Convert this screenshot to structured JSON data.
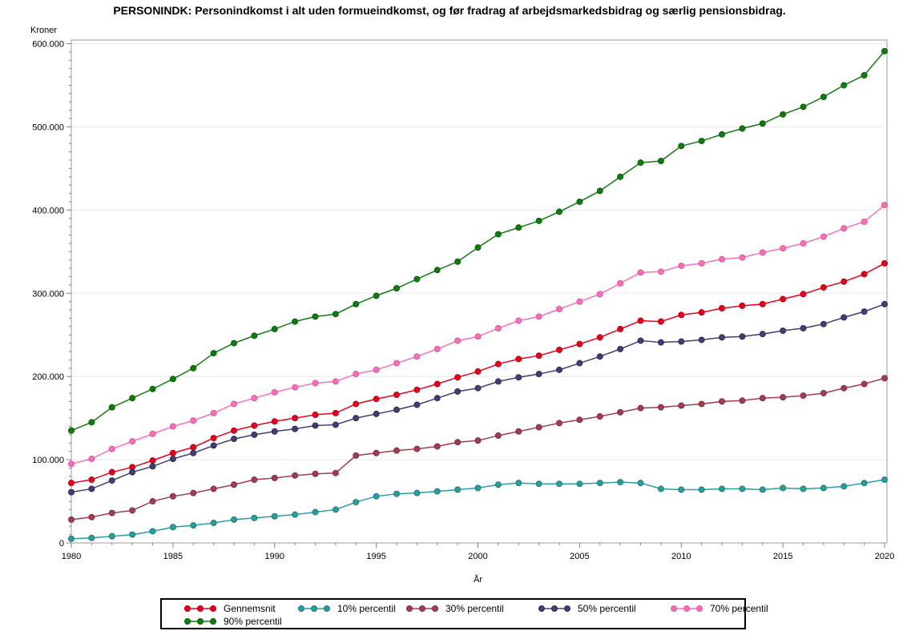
{
  "title": "PERSONINDK: Personindkomst i alt uden formueindkomst, og før fradrag af arbejdsmarkedsbidrag og særlig pensionsbidrag.",
  "chart_data": {
    "type": "line",
    "title": "PERSONINDK: Personindkomst i alt uden formueindkomst, og før fradrag af arbejdsmarkedsbidrag og særlig pensionsbidrag.",
    "xlabel": "År",
    "ylabel": "Kroner",
    "xlim": [
      1980,
      2020
    ],
    "ylim": [
      0,
      600000
    ],
    "grid": "horizontal",
    "legend_position": "bottom",
    "x": [
      1980,
      1981,
      1982,
      1983,
      1984,
      1985,
      1986,
      1987,
      1988,
      1989,
      1990,
      1991,
      1992,
      1993,
      1994,
      1995,
      1996,
      1997,
      1998,
      1999,
      2000,
      2001,
      2002,
      2003,
      2004,
      2005,
      2006,
      2007,
      2008,
      2009,
      2010,
      2011,
      2012,
      2013,
      2014,
      2015,
      2016,
      2017,
      2018,
      2019,
      2020
    ],
    "xticks": {
      "values": [
        1980,
        1985,
        1990,
        1995,
        2000,
        2005,
        2010,
        2015,
        2020
      ],
      "labels": [
        "1980",
        "1985",
        "1990",
        "1995",
        "2000",
        "2005",
        "2010",
        "2015",
        "2020"
      ]
    },
    "yticks": {
      "values": [
        0,
        100000,
        200000,
        300000,
        400000,
        500000,
        600000
      ],
      "labels": [
        "0",
        "100.000",
        "200.000",
        "300.000",
        "400.000",
        "500.000",
        "600.000"
      ]
    },
    "y_minor_step": 10000,
    "x_minor_step": 1,
    "series": [
      {
        "name": "Gennemsnit",
        "color": "#e8001c",
        "edge_color": "#b00015",
        "values": [
          72000,
          76000,
          85000,
          91000,
          99000,
          108000,
          115000,
          126000,
          135000,
          141000,
          146000,
          150000,
          154000,
          156000,
          167000,
          173000,
          178000,
          184000,
          191000,
          199000,
          206000,
          215000,
          221000,
          225000,
          232000,
          239000,
          247000,
          257000,
          267000,
          266000,
          274000,
          277000,
          282000,
          285000,
          287000,
          293000,
          299000,
          307000,
          314000,
          323000,
          336000
        ]
      },
      {
        "name": "10% percentil",
        "color": "#2a9d9d",
        "edge_color": "#1f7878",
        "values": [
          5000,
          6000,
          8000,
          10000,
          14000,
          19000,
          21000,
          24000,
          28000,
          30000,
          32000,
          34000,
          37000,
          40000,
          49000,
          56000,
          59000,
          60000,
          62000,
          64000,
          66000,
          70000,
          72000,
          71000,
          71000,
          71000,
          72000,
          73000,
          72000,
          65000,
          64000,
          64000,
          65000,
          65000,
          64000,
          66000,
          65000,
          66000,
          68000,
          72000,
          76000
        ]
      },
      {
        "name": "30% percentil",
        "color": "#a23c52",
        "edge_color": "#7c2e3f",
        "values": [
          28000,
          31000,
          36000,
          39000,
          50000,
          56000,
          60000,
          65000,
          70000,
          76000,
          78000,
          81000,
          83000,
          84000,
          105000,
          108000,
          111000,
          113000,
          116000,
          121000,
          123000,
          129000,
          134000,
          139000,
          144000,
          148000,
          152000,
          157000,
          162000,
          163000,
          165000,
          167000,
          170000,
          171000,
          174000,
          175000,
          177000,
          180000,
          186000,
          191000,
          198000
        ]
      },
      {
        "name": "50% percentil",
        "color": "#403e75",
        "edge_color": "#2e2c55",
        "values": [
          61000,
          65000,
          75000,
          85000,
          92000,
          101000,
          108000,
          117000,
          125000,
          130000,
          134000,
          137000,
          141000,
          142000,
          150000,
          155000,
          160000,
          166000,
          174000,
          182000,
          186000,
          194000,
          199000,
          203000,
          208000,
          216000,
          224000,
          233000,
          243000,
          241000,
          242000,
          244000,
          247000,
          248000,
          251000,
          255000,
          258000,
          263000,
          271000,
          278000,
          287000
        ]
      },
      {
        "name": "70% percentil",
        "color": "#fb6eb8",
        "edge_color": "#d9569c",
        "values": [
          95000,
          101000,
          113000,
          122000,
          131000,
          140000,
          147000,
          156000,
          167000,
          174000,
          181000,
          187000,
          192000,
          194000,
          203000,
          208000,
          216000,
          224000,
          233000,
          243000,
          248000,
          258000,
          267000,
          272000,
          281000,
          290000,
          299000,
          312000,
          325000,
          326000,
          333000,
          336000,
          341000,
          343000,
          349000,
          354000,
          360000,
          368000,
          378000,
          386000,
          406000
        ]
      },
      {
        "name": "90% percentil",
        "color": "#107c10",
        "edge_color": "#0b5c0b",
        "values": [
          135000,
          145000,
          163000,
          174000,
          185000,
          197000,
          210000,
          228000,
          240000,
          249000,
          257000,
          266000,
          272000,
          275000,
          287000,
          297000,
          306000,
          317000,
          328000,
          338000,
          355000,
          371000,
          379000,
          387000,
          398000,
          410000,
          423000,
          440000,
          457000,
          459000,
          477000,
          483000,
          491000,
          498000,
          504000,
          515000,
          524000,
          536000,
          550000,
          562000,
          591000
        ]
      }
    ]
  }
}
